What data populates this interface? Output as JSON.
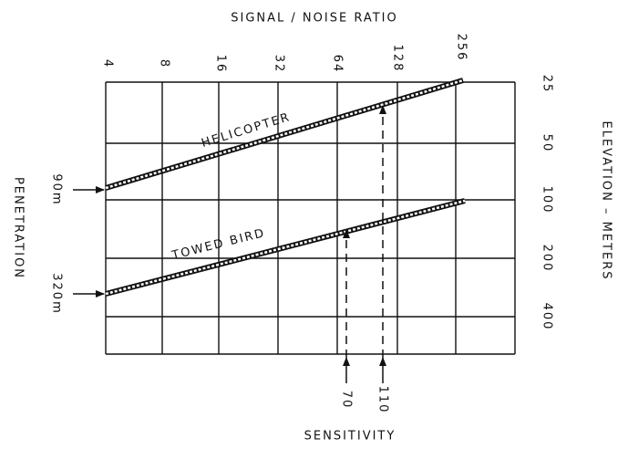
{
  "top_axis": {
    "title": "SIGNAL / NOISE RATIO",
    "labels": [
      "4",
      "8",
      "16",
      "32",
      "64",
      "128",
      "256"
    ]
  },
  "right_axis": {
    "title": "ELEVATION – METERS",
    "labels": [
      "25",
      "50",
      "100",
      "200",
      "400"
    ]
  },
  "left_axis": {
    "title": "PENETRATION",
    "labels": [
      "90m",
      "320m"
    ]
  },
  "bottom_axis": {
    "title": "SENSITIVITY",
    "labels": [
      "70",
      "110"
    ]
  },
  "lines": [
    {
      "label": "HELICOPTER"
    },
    {
      "label": "TOWED BIRD"
    }
  ]
}
